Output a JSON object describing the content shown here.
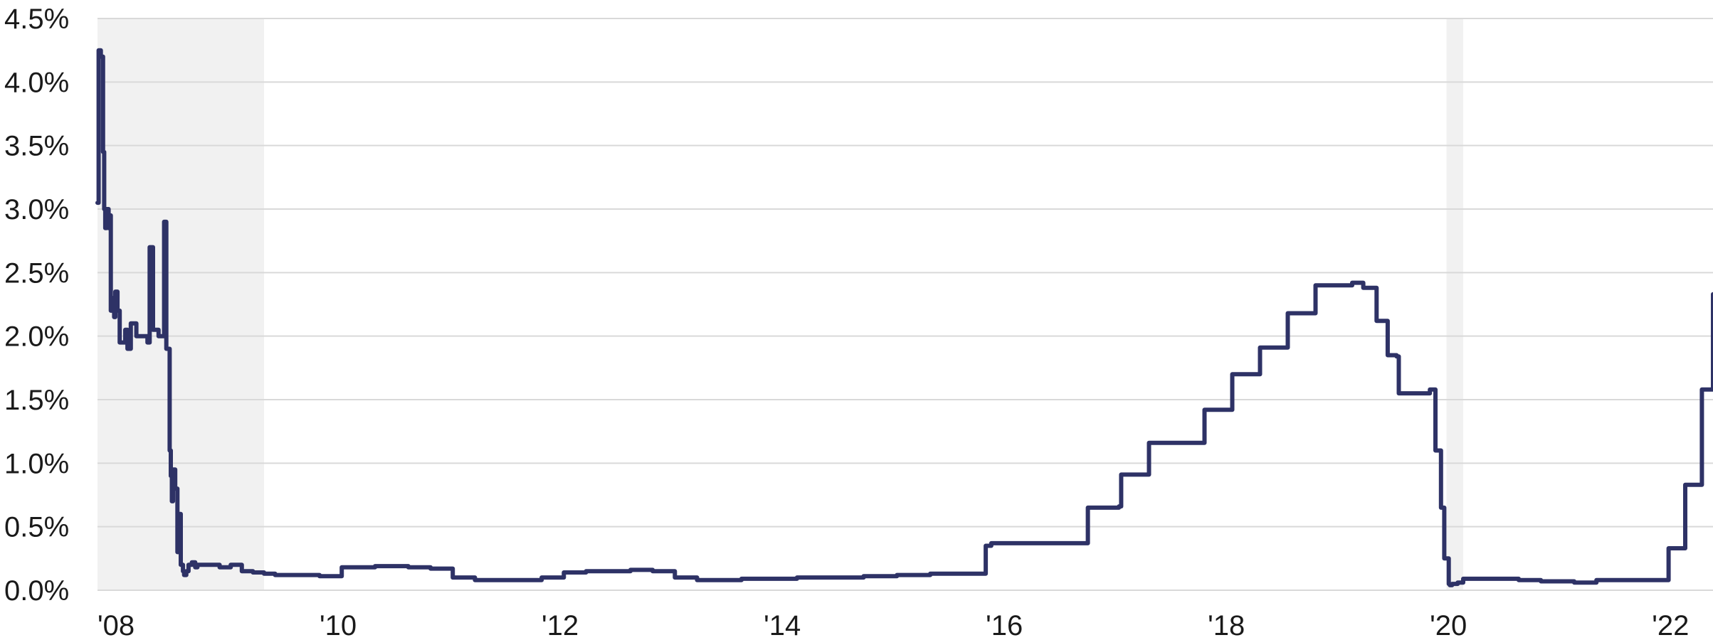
{
  "chart_data": {
    "type": "line",
    "title": "",
    "xlabel": "",
    "ylabel": "",
    "x_range": [
      2008.0,
      2022.55
    ],
    "ylim": [
      0,
      4.5
    ],
    "y_ticks": [
      0,
      0.5,
      1.0,
      1.5,
      2.0,
      2.5,
      3.0,
      3.5,
      4.0,
      4.5
    ],
    "y_tick_labels": [
      "0.0%",
      "0.5%",
      "1.0%",
      "1.5%",
      "2.0%",
      "2.5%",
      "3.0%",
      "3.5%",
      "4.0%",
      "4.5%"
    ],
    "x_ticks": [
      2008,
      2010,
      2012,
      2014,
      2016,
      2018,
      2020,
      2022
    ],
    "x_tick_labels": [
      "'08",
      "'10",
      "'12",
      "'14",
      "'16",
      "'18",
      "'20",
      "'22"
    ],
    "grid": "horizontal",
    "legend": "none",
    "line_color": "#2e3266",
    "recession_color": "#f1f1f1",
    "recession_bands": [
      [
        2008.0,
        2009.5
      ],
      [
        2020.15,
        2020.3
      ]
    ],
    "series": [
      {
        "x": [
          2008.0,
          2008.01,
          2008.03,
          2008.05,
          2008.06,
          2008.07,
          2008.08,
          2008.1,
          2008.11,
          2008.12,
          2008.14,
          2008.15,
          2008.16,
          2008.18,
          2008.2,
          2008.25,
          2008.27,
          2008.3,
          2008.35,
          2008.4,
          2008.45,
          2008.47,
          2008.5,
          2008.55,
          2008.6,
          2008.62,
          2008.65,
          2008.66,
          2008.67,
          2008.68,
          2008.7,
          2008.72,
          2008.73,
          2008.75,
          2008.77,
          2008.78,
          2008.8,
          2008.82,
          2008.85,
          2008.88,
          2008.9,
          2008.93,
          2008.95,
          2009.0,
          2009.1,
          2009.2,
          2009.3,
          2009.4,
          2009.5,
          2009.6,
          2009.8,
          2010.0,
          2010.2,
          2010.5,
          2010.8,
          2011.0,
          2011.2,
          2011.4,
          2011.6,
          2011.8,
          2012.0,
          2012.2,
          2012.4,
          2012.6,
          2012.8,
          2013.0,
          2013.2,
          2013.4,
          2013.6,
          2013.8,
          2014.0,
          2014.3,
          2014.6,
          2014.9,
          2015.2,
          2015.5,
          2015.75,
          2015.99,
          2016.0,
          2016.05,
          2016.9,
          2016.92,
          2017.2,
          2017.22,
          2017.45,
          2017.47,
          2017.95,
          2017.97,
          2018.2,
          2018.22,
          2018.45,
          2018.47,
          2018.7,
          2018.72,
          2018.95,
          2018.97,
          2019.2,
          2019.3,
          2019.4,
          2019.5,
          2019.52,
          2019.6,
          2019.62,
          2019.65,
          2019.7,
          2019.72,
          2019.85,
          2019.95,
          2020.0,
          2020.05,
          2020.1,
          2020.13,
          2020.17,
          2020.18,
          2020.2,
          2020.25,
          2020.3,
          2020.5,
          2020.8,
          2021.0,
          2021.3,
          2021.5,
          2021.8,
          2022.0,
          2022.03,
          2022.15,
          2022.2,
          2022.3,
          2022.35,
          2022.45,
          2022.5,
          2022.55
        ],
        "y": [
          3.05,
          4.25,
          4.2,
          3.45,
          3.0,
          2.85,
          3.0,
          2.85,
          2.95,
          2.2,
          2.3,
          2.15,
          2.35,
          2.2,
          1.95,
          2.05,
          1.9,
          2.1,
          2.0,
          2.0,
          1.95,
          2.7,
          2.05,
          2.0,
          2.9,
          1.9,
          1.1,
          0.9,
          0.7,
          0.95,
          0.8,
          0.3,
          0.6,
          0.2,
          0.15,
          0.12,
          0.15,
          0.2,
          0.22,
          0.18,
          0.2,
          0.2,
          0.2,
          0.2,
          0.18,
          0.2,
          0.15,
          0.14,
          0.13,
          0.12,
          0.12,
          0.11,
          0.18,
          0.19,
          0.18,
          0.17,
          0.1,
          0.08,
          0.08,
          0.08,
          0.1,
          0.14,
          0.15,
          0.15,
          0.16,
          0.15,
          0.1,
          0.08,
          0.08,
          0.09,
          0.09,
          0.1,
          0.1,
          0.11,
          0.12,
          0.13,
          0.13,
          0.13,
          0.35,
          0.37,
          0.37,
          0.65,
          0.66,
          0.91,
          0.91,
          1.16,
          1.16,
          1.42,
          1.42,
          1.7,
          1.7,
          1.91,
          1.91,
          2.18,
          2.18,
          2.4,
          2.4,
          2.42,
          2.38,
          2.38,
          2.12,
          2.12,
          1.85,
          1.85,
          1.84,
          1.55,
          1.55,
          1.55,
          1.58,
          1.1,
          0.65,
          0.25,
          0.05,
          0.04,
          0.05,
          0.06,
          0.09,
          0.09,
          0.08,
          0.07,
          0.06,
          0.08,
          0.08,
          0.08,
          0.08,
          0.33,
          0.33,
          0.83,
          0.83,
          1.58,
          1.58,
          2.33
        ]
      }
    ]
  }
}
